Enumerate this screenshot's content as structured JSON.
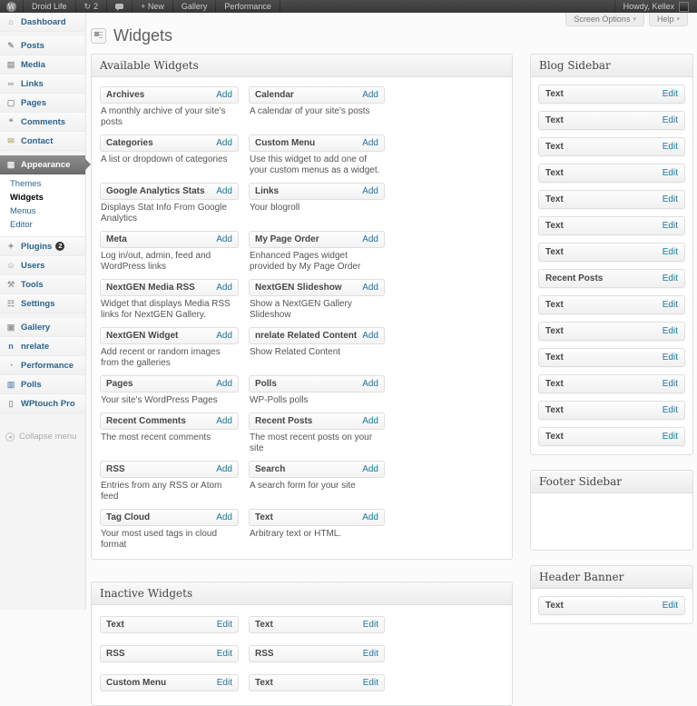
{
  "admin_bar": {
    "site_name": "Droid Life",
    "updates_count": "2",
    "new_label": "+ New",
    "gallery_label": "Gallery",
    "performance_label": "Performance",
    "howdy": "Howdy, Kellex"
  },
  "screen_tabs": {
    "screen_options": "Screen Options",
    "help": "Help"
  },
  "page": {
    "title": "Widgets"
  },
  "labels": {
    "add": "Add",
    "edit": "Edit"
  },
  "colors": {
    "link_blue": "#21759b",
    "admin_bar_bg": "#464646",
    "selected_menu_bg": "#6e6e6e"
  },
  "menu": {
    "top": [
      {
        "label": "Dashboard",
        "icon": "dashboard-icon"
      },
      {
        "label": "Posts",
        "icon": "posts-icon"
      },
      {
        "label": "Media",
        "icon": "media-icon"
      },
      {
        "label": "Links",
        "icon": "links-icon"
      },
      {
        "label": "Pages",
        "icon": "pages-icon"
      },
      {
        "label": "Comments",
        "icon": "comments-icon"
      },
      {
        "label": "Contact",
        "icon": "contact-icon"
      }
    ],
    "appearance": {
      "label": "Appearance",
      "icon": "appearance-icon",
      "submenu": [
        "Themes",
        "Widgets",
        "Menus",
        "Editor"
      ],
      "current_submenu": "Widgets"
    },
    "middle": [
      {
        "label": "Plugins",
        "icon": "plugins-icon",
        "badge": "2"
      },
      {
        "label": "Users",
        "icon": "users-icon"
      },
      {
        "label": "Tools",
        "icon": "tools-icon"
      },
      {
        "label": "Settings",
        "icon": "settings-icon"
      }
    ],
    "lower": [
      {
        "label": "Gallery",
        "icon": "gallery-icon"
      },
      {
        "label": "nrelate",
        "icon": "nrelate-icon"
      },
      {
        "label": "Performance",
        "icon": "performance-icon"
      },
      {
        "label": "Polls",
        "icon": "polls-icon"
      },
      {
        "label": "WPtouch Pro",
        "icon": "wptouch-icon"
      }
    ],
    "collapse": "Collapse menu"
  },
  "available": {
    "title": "Available Widgets",
    "widgets": [
      {
        "title": "Archives",
        "desc": "A monthly archive of your site's posts"
      },
      {
        "title": "Calendar",
        "desc": "A calendar of your site's posts"
      },
      {
        "title": "Categories",
        "desc": "A list or dropdown of categories"
      },
      {
        "title": "Custom Menu",
        "desc": "Use this widget to add one of your custom menus as a widget."
      },
      {
        "title": "Google Analytics Stats",
        "desc": "Displays Stat Info From Google Analytics"
      },
      {
        "title": "Links",
        "desc": "Your blogroll"
      },
      {
        "title": "Meta",
        "desc": "Log in/out, admin, feed and WordPress links"
      },
      {
        "title": "My Page Order",
        "desc": "Enhanced Pages widget provided by My Page Order"
      },
      {
        "title": "NextGEN Media RSS",
        "desc": "Widget that displays Media RSS links for NextGEN Gallery."
      },
      {
        "title": "NextGEN Slideshow",
        "desc": "Show a NextGEN Gallery Slideshow"
      },
      {
        "title": "NextGEN Widget",
        "desc": "Add recent or random images from the galleries"
      },
      {
        "title": "nrelate Related Content",
        "desc": "Show Related Content"
      },
      {
        "title": "Pages",
        "desc": "Your site's WordPress Pages"
      },
      {
        "title": "Polls",
        "desc": "WP-Polls polls"
      },
      {
        "title": "Recent Comments",
        "desc": "The most recent comments"
      },
      {
        "title": "Recent Posts",
        "desc": "The most recent posts on your site"
      },
      {
        "title": "RSS",
        "desc": "Entries from any RSS or Atom feed"
      },
      {
        "title": "Search",
        "desc": "A search form for your site"
      },
      {
        "title": "Tag Cloud",
        "desc": "Your most used tags in cloud format"
      },
      {
        "title": "Text",
        "desc": "Arbitrary text or HTML."
      }
    ]
  },
  "inactive": {
    "title": "Inactive Widgets",
    "widgets": [
      "Text",
      "Text",
      "RSS",
      "RSS",
      "Custom Menu",
      "Text"
    ]
  },
  "sidebars": {
    "blog": {
      "title": "Blog Sidebar",
      "items": [
        "Text",
        "Text",
        "Text",
        "Text",
        "Text",
        "Text",
        "Text",
        "Recent Posts",
        "Text",
        "Text",
        "Text",
        "Text",
        "Text",
        "Text"
      ]
    },
    "footer": {
      "title": "Footer Sidebar",
      "items": []
    },
    "header_banner": {
      "title": "Header Banner",
      "items": [
        "Text"
      ]
    }
  }
}
